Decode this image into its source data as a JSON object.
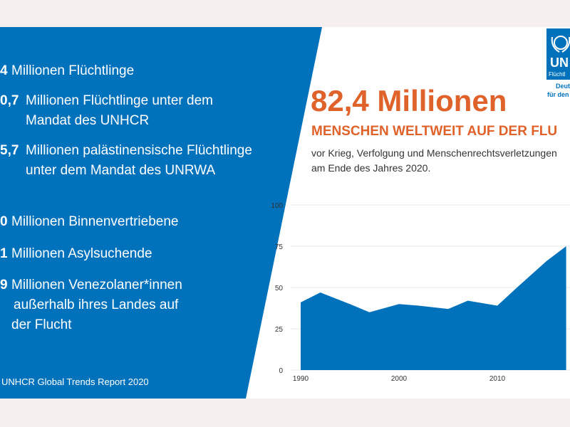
{
  "left_panel": {
    "items": [
      {
        "number": "4",
        "lines": [
          "Millionen Flüchtlinge"
        ]
      },
      {
        "number": "0,7",
        "lines": [
          "Millionen Flüchtlinge unter dem",
          "Mandat des UNHCR"
        ]
      },
      {
        "number": "5,7",
        "lines": [
          "Millionen palästinensische Flüchtlinge",
          "unter dem Mandat des UNRWA"
        ]
      },
      {
        "number": "0",
        "lines": [
          "Millionen Binnenvertriebene"
        ]
      },
      {
        "number": "1",
        "lines": [
          "Millionen Asylsuchende"
        ]
      },
      {
        "number": "9",
        "lines": [
          "Millionen Venezolaner*innen",
          "außerhalb ihres Landes auf",
          "der Flucht"
        ]
      }
    ],
    "source": "UNHCR Global Trends Report 2020"
  },
  "headline": {
    "big": "82,4 Millionen",
    "sub": "MENSCHEN WELTWEIT AUF DER FLU",
    "desc1": "vor Krieg, Verfolgung und Menschenrechtsverletzungen",
    "desc2": "am Ende des Jahres 2020."
  },
  "logo": {
    "un": "UN",
    "fl": "Flüchtl",
    "line1": "Deuts",
    "line2": "für den"
  },
  "colors": {
    "blue": "#0072bc",
    "orange": "#e0622b",
    "background": "#f6efef"
  },
  "chart_data": {
    "type": "area",
    "x": [
      1990,
      1992,
      1995,
      1997,
      2000,
      2002,
      2005,
      2007,
      2010,
      2012,
      2015,
      2017
    ],
    "values": [
      41,
      47,
      40,
      35,
      40,
      39,
      37,
      42,
      39,
      50,
      66,
      75
    ],
    "xticks": [
      "1990",
      "2000",
      "2010"
    ],
    "yticks": [
      "0",
      "25",
      "50",
      "75",
      "100"
    ],
    "ylim": [
      0,
      100
    ],
    "grid": true,
    "color": "#0072bc"
  }
}
